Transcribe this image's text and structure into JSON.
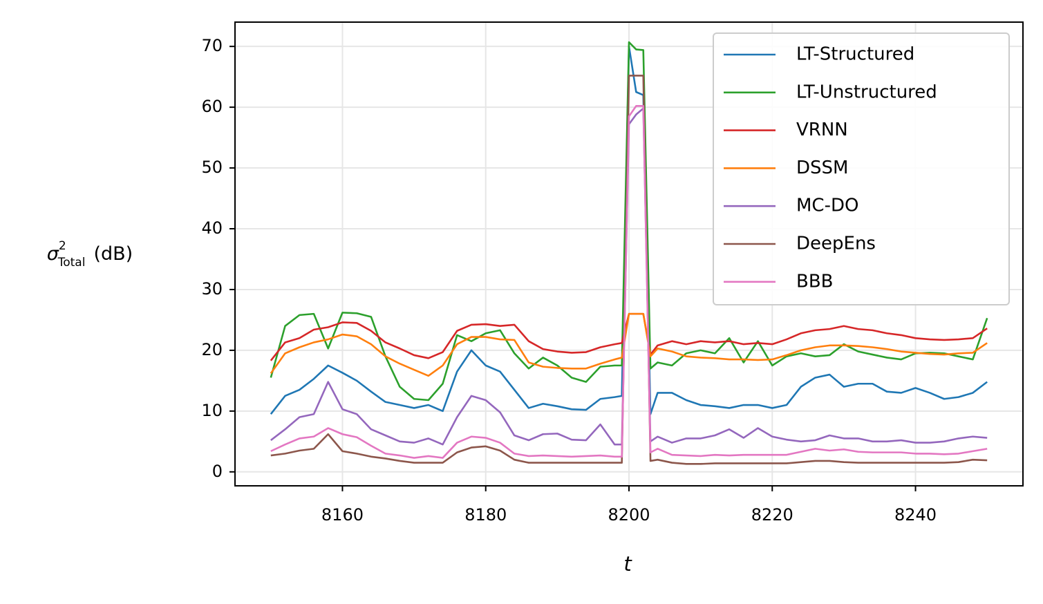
{
  "chart_data": {
    "type": "line",
    "x_label": "t",
    "y_label": {
      "symbol": "σ",
      "superscript": "2",
      "subscript": "Total",
      "unit": "(dB)"
    },
    "x": [
      8150,
      8152,
      8154,
      8156,
      8158,
      8160,
      8162,
      8164,
      8166,
      8168,
      8170,
      8172,
      8174,
      8176,
      8178,
      8180,
      8182,
      8184,
      8186,
      8188,
      8190,
      8192,
      8194,
      8196,
      8198,
      8199,
      8200,
      8201,
      8202,
      8203,
      8204,
      8206,
      8208,
      8210,
      8212,
      8214,
      8216,
      8218,
      8220,
      8222,
      8224,
      8226,
      8228,
      8230,
      8232,
      8234,
      8236,
      8238,
      8240,
      8242,
      8244,
      8246,
      8248,
      8250
    ],
    "series": [
      {
        "name": "LT-Structured",
        "color": "#1f77b4",
        "values": [
          9.5,
          12.5,
          13.5,
          15.3,
          17.5,
          16.3,
          15.0,
          13.2,
          11.5,
          11.0,
          10.5,
          11.0,
          10.0,
          16.5,
          20.0,
          17.5,
          16.5,
          13.5,
          10.5,
          11.2,
          10.8,
          10.3,
          10.2,
          12.0,
          12.3,
          12.5,
          70,
          62.5,
          62,
          9.5,
          13.0,
          13.0,
          11.8,
          11.0,
          10.8,
          10.5,
          11.0,
          11.0,
          10.5,
          11.0,
          14.0,
          15.5,
          16.0,
          14.0,
          14.5,
          14.5,
          13.2,
          13.0,
          13.8,
          13.0,
          12.0,
          12.3,
          13.0,
          14.8
        ]
      },
      {
        "name": "LT-Unstructured",
        "color": "#2ca02c",
        "values": [
          15.5,
          24,
          25.8,
          26,
          20.3,
          26.2,
          26.1,
          25.5,
          19,
          14,
          12,
          11.8,
          14.5,
          22.5,
          21.5,
          22.8,
          23.3,
          19.5,
          17,
          18.8,
          17.5,
          15.5,
          14.8,
          17.3,
          17.5,
          17.5,
          70.7,
          69.5,
          69.4,
          17,
          18,
          17.5,
          19.5,
          20,
          19.5,
          22,
          18,
          21.5,
          17.5,
          19,
          19.5,
          19,
          19.2,
          21,
          19.8,
          19.3,
          18.8,
          18.5,
          19.5,
          19.6,
          19.5,
          19,
          18.5,
          25.3
        ]
      },
      {
        "name": "VRNN",
        "color": "#d62728",
        "values": [
          18.3,
          21.3,
          22,
          23.4,
          23.8,
          24.6,
          24.5,
          23.2,
          21.3,
          20.3,
          19.2,
          18.7,
          19.7,
          23.2,
          24.2,
          24.3,
          24,
          24.2,
          21.5,
          20.2,
          19.8,
          19.6,
          19.7,
          20.5,
          21,
          21.2,
          26,
          26,
          26,
          19.3,
          20.8,
          21.5,
          21,
          21.5,
          21.3,
          21.5,
          21,
          21.2,
          21,
          21.8,
          22.8,
          23.3,
          23.5,
          24,
          23.5,
          23.3,
          22.8,
          22.5,
          22,
          21.8,
          21.7,
          21.8,
          22,
          23.6
        ]
      },
      {
        "name": "DSSM",
        "color": "#ff7f0e",
        "values": [
          16.2,
          19.5,
          20.5,
          21.3,
          21.8,
          22.6,
          22.3,
          21,
          19,
          17.8,
          16.8,
          15.8,
          17.5,
          21,
          22.2,
          22.2,
          21.8,
          21.7,
          18,
          17.3,
          17.1,
          17,
          17,
          17.8,
          18.5,
          18.8,
          26,
          26,
          26,
          19,
          20.3,
          19.8,
          19,
          18.8,
          18.7,
          18.5,
          18.5,
          18.4,
          18.5,
          19.2,
          20,
          20.5,
          20.8,
          20.8,
          20.7,
          20.5,
          20.2,
          19.8,
          19.6,
          19.4,
          19.3,
          19.5,
          19.6,
          21.2
        ]
      },
      {
        "name": "MC-DO",
        "color": "#9467bd",
        "values": [
          5.2,
          7,
          9,
          9.5,
          14.8,
          10.3,
          9.5,
          7,
          6,
          5,
          4.8,
          5.5,
          4.5,
          9,
          12.5,
          11.8,
          9.8,
          6,
          5.2,
          6.2,
          6.3,
          5.3,
          5.2,
          7.8,
          4.5,
          4.5,
          57.2,
          58.8,
          59.8,
          5,
          5.8,
          4.8,
          5.5,
          5.5,
          6,
          7,
          5.6,
          7.2,
          5.8,
          5.3,
          5,
          5.2,
          6,
          5.5,
          5.5,
          5,
          5,
          5.2,
          4.8,
          4.8,
          5,
          5.5,
          5.8,
          5.6
        ]
      },
      {
        "name": "DeepEns",
        "color": "#8c564b",
        "values": [
          2.7,
          3,
          3.5,
          3.8,
          6.2,
          3.4,
          3,
          2.5,
          2.2,
          1.8,
          1.5,
          1.5,
          1.5,
          3.2,
          4,
          4.2,
          3.5,
          2,
          1.5,
          1.5,
          1.5,
          1.5,
          1.5,
          1.5,
          1.5,
          1.5,
          65.2,
          65.2,
          65.2,
          1.8,
          2,
          1.5,
          1.3,
          1.3,
          1.4,
          1.4,
          1.4,
          1.4,
          1.4,
          1.4,
          1.6,
          1.8,
          1.8,
          1.6,
          1.5,
          1.5,
          1.5,
          1.5,
          1.5,
          1.5,
          1.5,
          1.6,
          2,
          1.9
        ]
      },
      {
        "name": "BBB",
        "color": "#e377c2",
        "values": [
          3.4,
          4.5,
          5.5,
          5.8,
          7.2,
          6.2,
          5.7,
          4.3,
          3,
          2.7,
          2.3,
          2.6,
          2.3,
          4.8,
          5.8,
          5.6,
          4.8,
          3,
          2.6,
          2.7,
          2.6,
          2.5,
          2.6,
          2.7,
          2.5,
          2.5,
          58.5,
          60.2,
          60.2,
          3.2,
          3.8,
          2.8,
          2.7,
          2.6,
          2.8,
          2.7,
          2.8,
          2.8,
          2.8,
          2.8,
          3.3,
          3.8,
          3.5,
          3.7,
          3.3,
          3.2,
          3.2,
          3.2,
          3,
          3,
          2.9,
          3,
          3.4,
          3.8
        ]
      }
    ],
    "xlim": [
      8145,
      8255
    ],
    "ylim": [
      -2.3,
      74
    ],
    "xticks": [
      8160,
      8180,
      8200,
      8220,
      8240
    ],
    "yticks": [
      0,
      10,
      20,
      30,
      40,
      50,
      60,
      70
    ],
    "grid": true,
    "legend": "upper right"
  }
}
